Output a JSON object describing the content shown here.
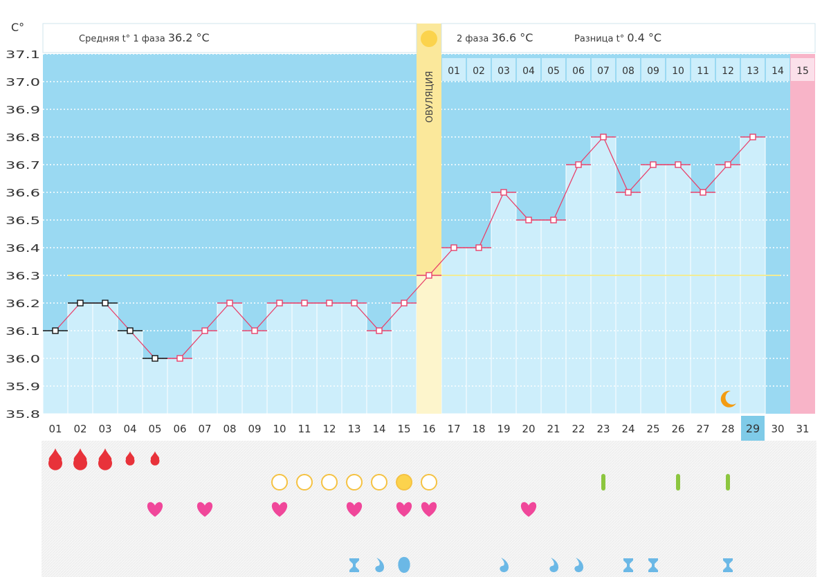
{
  "unit_label": "C°",
  "header": {
    "phase1_prefix": "Средняя t° 1 фаза",
    "phase1_value": "36.2 °C",
    "phase2_prefix": "2 фаза",
    "phase2_value": "36.6 °C",
    "diff_prefix": "Разница t°",
    "diff_value": "0.4 °C"
  },
  "ovulation_label": "ОВУЛЯЦИЯ",
  "colors": {
    "background": "#9ad9f2",
    "bar_fill": "#cdeefb",
    "line": "#e8406a",
    "ovulation": "#fbe89b",
    "period": "#f8b4c8",
    "coverline": "#f2ec94"
  },
  "chart_data": {
    "type": "line",
    "title": "",
    "xlabel": "",
    "ylabel": "C°",
    "ylim": [
      35.8,
      37.1
    ],
    "yticks": [
      "35.8",
      "35.9",
      "36.0",
      "36.1",
      "36.2",
      "36.3",
      "36.4",
      "36.5",
      "36.6",
      "36.7",
      "36.8",
      "36.9",
      "37.0",
      "37.1"
    ],
    "categories": [
      "01",
      "02",
      "03",
      "04",
      "05",
      "06",
      "07",
      "08",
      "09",
      "10",
      "11",
      "12",
      "13",
      "14",
      "15",
      "16",
      "17",
      "18",
      "19",
      "20",
      "21",
      "22",
      "23",
      "24",
      "25",
      "26",
      "27",
      "28",
      "29",
      "30",
      "31"
    ],
    "series": [
      {
        "values": [
          36.1,
          36.2,
          36.2,
          36.1,
          36.0,
          36.0,
          36.1,
          36.2,
          36.1,
          36.2,
          36.2,
          36.2,
          36.2,
          36.1,
          36.2,
          36.3,
          36.4,
          36.4,
          36.6,
          36.5,
          36.5,
          36.7,
          36.8,
          36.6,
          36.7,
          36.7,
          36.6,
          36.7,
          36.8,
          null,
          null
        ]
      }
    ],
    "coverline": 36.3,
    "ovulation_day": "16",
    "luteal_day_labels": [
      "01",
      "02",
      "03",
      "04",
      "05",
      "06",
      "07",
      "08",
      "09",
      "10",
      "11",
      "12",
      "13",
      "14",
      "15"
    ],
    "current_day": "29",
    "period_day": "31",
    "grid": true
  },
  "symbol_rows": [
    {
      "icon": "blood-drop-icon",
      "items": [
        {
          "day": 1,
          "size": "large"
        },
        {
          "day": 2,
          "size": "large"
        },
        {
          "day": 3,
          "size": "large"
        },
        {
          "day": 4,
          "size": "small"
        },
        {
          "day": 5,
          "size": "small"
        }
      ]
    },
    {
      "icon": "circle-icon",
      "items": [
        {
          "day": 10,
          "filled": false
        },
        {
          "day": 11,
          "filled": false
        },
        {
          "day": 12,
          "filled": false
        },
        {
          "day": 13,
          "filled": false
        },
        {
          "day": 14,
          "filled": false
        },
        {
          "day": 15,
          "filled": true
        },
        {
          "day": 16,
          "filled": false
        }
      ]
    },
    {
      "icon": "test-strip-icon",
      "items": [
        {
          "day": 23
        },
        {
          "day": 26
        },
        {
          "day": 28
        }
      ]
    },
    {
      "icon": "heart-icon",
      "items": [
        {
          "day": 5
        },
        {
          "day": 7
        },
        {
          "day": 10
        },
        {
          "day": 13
        },
        {
          "day": 15
        },
        {
          "day": 16
        },
        {
          "day": 20
        }
      ]
    },
    {
      "icon": "empty-row",
      "items": []
    },
    {
      "icon": "discharge-icon",
      "items": [
        {
          "day": 13,
          "kind": "hourglass"
        },
        {
          "day": 14,
          "kind": "drop"
        },
        {
          "day": 15,
          "kind": "egg"
        },
        {
          "day": 19,
          "kind": "drop"
        },
        {
          "day": 21,
          "kind": "drop"
        },
        {
          "day": 22,
          "kind": "drop"
        },
        {
          "day": 24,
          "kind": "hourglass"
        },
        {
          "day": 25,
          "kind": "hourglass"
        },
        {
          "day": 28,
          "kind": "hourglass"
        }
      ]
    }
  ],
  "markers": {
    "moon_day": 28
  }
}
